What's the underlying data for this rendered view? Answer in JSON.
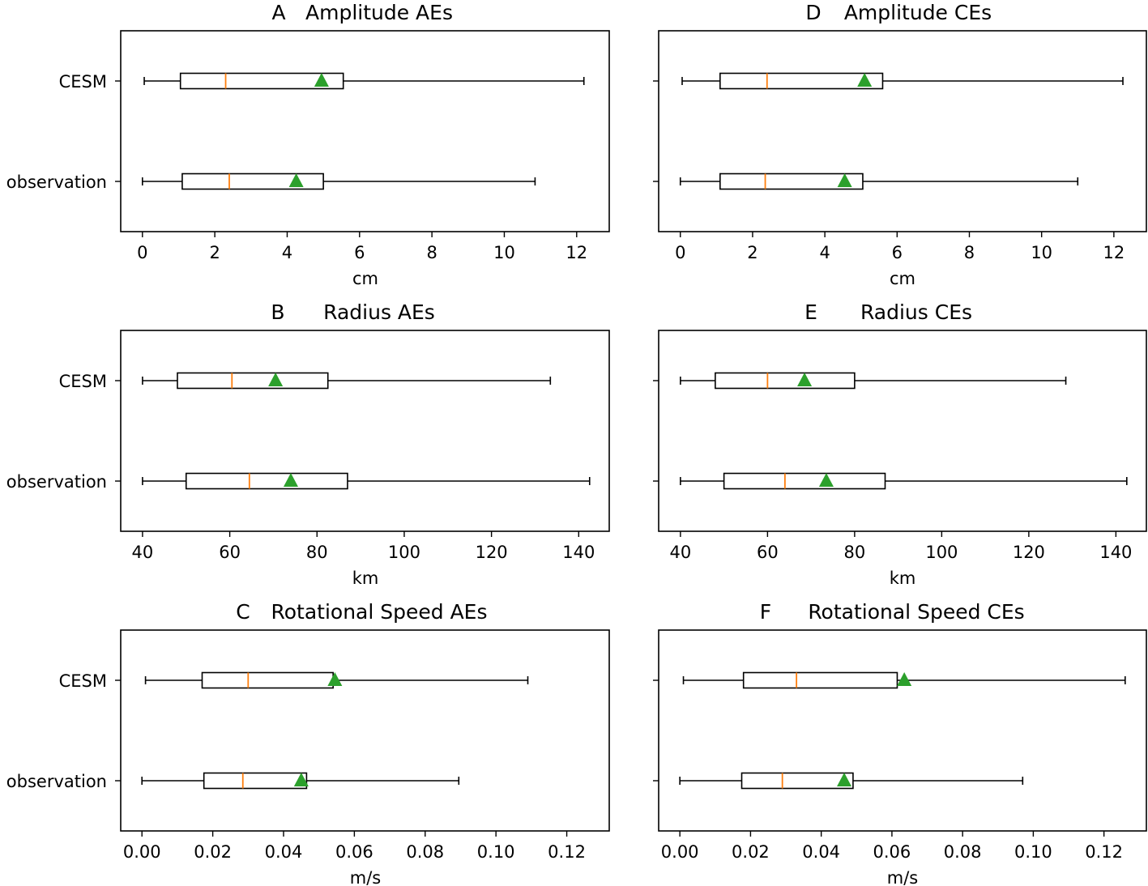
{
  "colors": {
    "median": "#ff7f0e",
    "mean": "#2ca02c",
    "line": "#000000"
  },
  "chart_data": [
    {
      "type": "boxplot",
      "orientation": "horizontal",
      "title_letter": "A",
      "title_text": "Amplitude AEs",
      "xlabel": "cm",
      "xlim": [
        -0.6,
        12.9
      ],
      "xticks": [
        0,
        2,
        4,
        6,
        8,
        10,
        12
      ],
      "xtick_labels": [
        "0",
        "2",
        "4",
        "6",
        "8",
        "10",
        "12"
      ],
      "series": [
        {
          "name": "CESM",
          "whisker_low": 0.05,
          "q1": 1.05,
          "median": 2.3,
          "q3": 5.55,
          "whisker_high": 12.2,
          "mean": 4.95
        },
        {
          "name": "observation",
          "whisker_low": 0.0,
          "q1": 1.1,
          "median": 2.4,
          "q3": 5.0,
          "whisker_high": 10.85,
          "mean": 4.25
        }
      ]
    },
    {
      "type": "boxplot",
      "orientation": "horizontal",
      "title_letter": "D",
      "title_text": "Amplitude CEs",
      "xlabel": "cm",
      "xlim": [
        -0.6,
        12.9
      ],
      "xticks": [
        0,
        2,
        4,
        6,
        8,
        10,
        12
      ],
      "xtick_labels": [
        "0",
        "2",
        "4",
        "6",
        "8",
        "10",
        "12"
      ],
      "series": [
        {
          "name": "CESM",
          "whisker_low": 0.05,
          "q1": 1.1,
          "median": 2.4,
          "q3": 5.6,
          "whisker_high": 12.25,
          "mean": 5.1
        },
        {
          "name": "observation",
          "whisker_low": 0.0,
          "q1": 1.1,
          "median": 2.35,
          "q3": 5.05,
          "whisker_high": 11.0,
          "mean": 4.55
        }
      ]
    },
    {
      "type": "boxplot",
      "orientation": "horizontal",
      "title_letter": "B",
      "title_text": "Radius AEs",
      "xlabel": "km",
      "xlim": [
        35,
        147
      ],
      "xticks": [
        40,
        60,
        80,
        100,
        120,
        140
      ],
      "xtick_labels": [
        "40",
        "60",
        "80",
        "100",
        "120",
        "140"
      ],
      "series": [
        {
          "name": "CESM",
          "whisker_low": 40,
          "q1": 48,
          "median": 60.5,
          "q3": 82.5,
          "whisker_high": 133.5,
          "mean": 70.5
        },
        {
          "name": "observation",
          "whisker_low": 40,
          "q1": 50,
          "median": 64.5,
          "q3": 87,
          "whisker_high": 142.5,
          "mean": 74
        }
      ]
    },
    {
      "type": "boxplot",
      "orientation": "horizontal",
      "title_letter": "E",
      "title_text": "Radius CEs",
      "xlabel": "km",
      "xlim": [
        35,
        147
      ],
      "xticks": [
        40,
        60,
        80,
        100,
        120,
        140
      ],
      "xtick_labels": [
        "40",
        "60",
        "80",
        "100",
        "120",
        "140"
      ],
      "series": [
        {
          "name": "CESM",
          "whisker_low": 40,
          "q1": 48,
          "median": 60,
          "q3": 80,
          "whisker_high": 128.5,
          "mean": 68.5
        },
        {
          "name": "observation",
          "whisker_low": 40,
          "q1": 50,
          "median": 64,
          "q3": 87,
          "whisker_high": 142.5,
          "mean": 73.5
        }
      ]
    },
    {
      "type": "boxplot",
      "orientation": "horizontal",
      "title_letter": "C",
      "title_text": "Rotational Speed AEs",
      "xlabel": "m/s",
      "xlim": [
        -0.006,
        0.132
      ],
      "xticks": [
        0,
        0.02,
        0.04,
        0.06,
        0.08,
        0.1,
        0.12
      ],
      "xtick_labels": [
        "0.00",
        "0.02",
        "0.04",
        "0.06",
        "0.08",
        "0.10",
        "0.12"
      ],
      "series": [
        {
          "name": "CESM",
          "whisker_low": 0.001,
          "q1": 0.017,
          "median": 0.03,
          "q3": 0.054,
          "whisker_high": 0.109,
          "mean": 0.0545
        },
        {
          "name": "observation",
          "whisker_low": 0.0,
          "q1": 0.0175,
          "median": 0.0285,
          "q3": 0.0465,
          "whisker_high": 0.0895,
          "mean": 0.045
        }
      ]
    },
    {
      "type": "boxplot",
      "orientation": "horizontal",
      "title_letter": "F",
      "title_text": "Rotational Speed CEs",
      "xlabel": "m/s",
      "xlim": [
        -0.006,
        0.132
      ],
      "xticks": [
        0,
        0.02,
        0.04,
        0.06,
        0.08,
        0.1,
        0.12
      ],
      "xtick_labels": [
        "0.00",
        "0.02",
        "0.04",
        "0.06",
        "0.08",
        "0.10",
        "0.12"
      ],
      "series": [
        {
          "name": "CESM",
          "whisker_low": 0.001,
          "q1": 0.018,
          "median": 0.033,
          "q3": 0.0615,
          "whisker_high": 0.126,
          "mean": 0.0635
        },
        {
          "name": "observation",
          "whisker_low": 0.0,
          "q1": 0.0175,
          "median": 0.029,
          "q3": 0.049,
          "whisker_high": 0.097,
          "mean": 0.0465
        }
      ]
    }
  ]
}
